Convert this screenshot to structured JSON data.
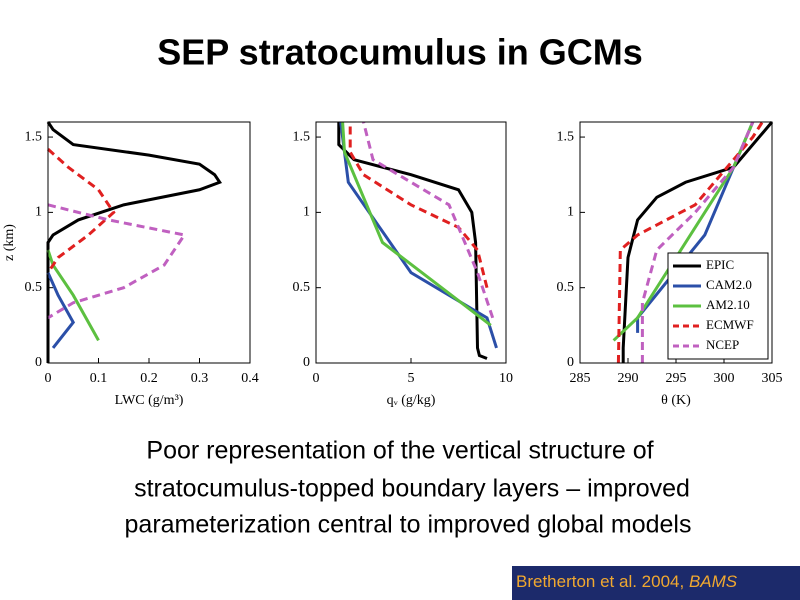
{
  "title": "SEP stratocumulus in GCMs",
  "chart_data": [
    {
      "type": "line",
      "xlabel": "LWC (g/m³)",
      "ylabel": "z (km)",
      "xlim": [
        0,
        0.4
      ],
      "xticks": [
        0,
        0.1,
        0.2,
        0.3,
        0.4
      ],
      "ylim": [
        0,
        1.6
      ],
      "yticks": [
        0,
        0.5,
        1,
        1.5
      ],
      "series": [
        {
          "color": "#000000",
          "dash": false,
          "x": [
            0,
            0.01,
            0.05,
            0.2,
            0.3,
            0.33,
            0.34,
            0.3,
            0.15,
            0.06,
            0.01,
            0,
            0
          ],
          "y": [
            1.6,
            1.55,
            1.45,
            1.38,
            1.32,
            1.25,
            1.2,
            1.15,
            1.05,
            0.95,
            0.85,
            0.8,
            0
          ]
        },
        {
          "color": "#2b4fa8",
          "dash": false,
          "x": [
            0.01,
            0.05,
            0.02,
            0
          ],
          "y": [
            0.1,
            0.27,
            0.45,
            0.6
          ]
        },
        {
          "color": "#5cc040",
          "dash": false,
          "x": [
            0.1,
            0.05,
            0.01,
            0
          ],
          "y": [
            0.15,
            0.45,
            0.65,
            0.75
          ]
        },
        {
          "color": "#e02020",
          "dash": true,
          "x": [
            0,
            0.04,
            0.1,
            0.13,
            0.08,
            0.02,
            0
          ],
          "y": [
            1.42,
            1.3,
            1.15,
            1.0,
            0.85,
            0.7,
            0.6
          ]
        },
        {
          "color": "#c060c0",
          "dash": true,
          "x": [
            0,
            0.12,
            0.27,
            0.23,
            0.15,
            0.05,
            0
          ],
          "y": [
            1.05,
            0.95,
            0.85,
            0.65,
            0.5,
            0.4,
            0.3
          ]
        }
      ]
    },
    {
      "type": "line",
      "xlabel": "qᵥ (g/kg)",
      "xlim": [
        0,
        10
      ],
      "xticks": [
        0,
        5,
        10
      ],
      "ylim": [
        0,
        1.6
      ],
      "yticks": [
        0,
        0.5,
        1,
        1.5
      ],
      "series": [
        {
          "color": "#000000",
          "dash": false,
          "x": [
            9.0,
            8.6,
            8.5,
            8.4,
            8.2,
            7.5,
            5,
            2,
            1.2,
            1.2
          ],
          "y": [
            0.03,
            0.05,
            0.1,
            0.8,
            1.0,
            1.15,
            1.25,
            1.35,
            1.45,
            1.6
          ]
        },
        {
          "color": "#2b4fa8",
          "dash": false,
          "x": [
            9.5,
            9.0,
            5,
            1.7,
            1.3
          ],
          "y": [
            0.1,
            0.3,
            0.6,
            1.2,
            1.6
          ]
        },
        {
          "color": "#5cc040",
          "dash": false,
          "x": [
            9.2,
            3.5,
            1.5,
            1.4
          ],
          "y": [
            0.25,
            0.8,
            1.4,
            1.6
          ]
        },
        {
          "color": "#e02020",
          "dash": true,
          "x": [
            9.0,
            8.5,
            7.5,
            5,
            2.5,
            1.8,
            1.8
          ],
          "y": [
            0.5,
            0.75,
            0.9,
            1.05,
            1.25,
            1.4,
            1.6
          ]
        },
        {
          "color": "#c060c0",
          "dash": true,
          "x": [
            9.3,
            8.5,
            7,
            5,
            3,
            2.5
          ],
          "y": [
            0.3,
            0.6,
            1.05,
            1.2,
            1.35,
            1.6
          ]
        }
      ]
    },
    {
      "type": "line",
      "xlabel": "θ (K)",
      "legend": "lower right",
      "xlim": [
        285,
        305
      ],
      "xticks": [
        285,
        290,
        295,
        300,
        305
      ],
      "ylim": [
        0,
        1.6
      ],
      "yticks": [
        0,
        0.5,
        1,
        1.5
      ],
      "series": [
        {
          "name": "EPIC",
          "color": "#000000",
          "dash": false,
          "x": [
            289.5,
            289.5,
            290,
            291,
            293,
            296,
            301,
            305
          ],
          "y": [
            0,
            0.1,
            0.7,
            0.95,
            1.1,
            1.2,
            1.3,
            1.6
          ]
        },
        {
          "name": "CAM2.0",
          "color": "#2b4fa8",
          "dash": false,
          "x": [
            291,
            291,
            298,
            301,
            303
          ],
          "y": [
            0.2,
            0.3,
            0.85,
            1.3,
            1.6
          ]
        },
        {
          "name": "AM2.10",
          "color": "#5cc040",
          "dash": false,
          "x": [
            288.5,
            291,
            301,
            303
          ],
          "y": [
            0.15,
            0.3,
            1.3,
            1.6
          ]
        },
        {
          "name": "ECMWF",
          "color": "#e02020",
          "dash": true,
          "x": [
            289,
            289.2,
            291,
            297,
            303,
            304
          ],
          "y": [
            0,
            0.75,
            0.85,
            1.05,
            1.5,
            1.6
          ]
        },
        {
          "name": "NCEP",
          "color": "#c060c0",
          "dash": true,
          "x": [
            291.5,
            291.5,
            293,
            297,
            301,
            303
          ],
          "y": [
            0,
            0.4,
            0.75,
            1.0,
            1.3,
            1.6
          ]
        }
      ]
    }
  ],
  "body": [
    "Poor representation of the vertical structure of",
    "stratocumulus-topped boundary layers – improved",
    "parameterization central to improved global models"
  ],
  "citation": {
    "text": "Bretherton et al. 2004, ",
    "journal": "BAMS"
  }
}
